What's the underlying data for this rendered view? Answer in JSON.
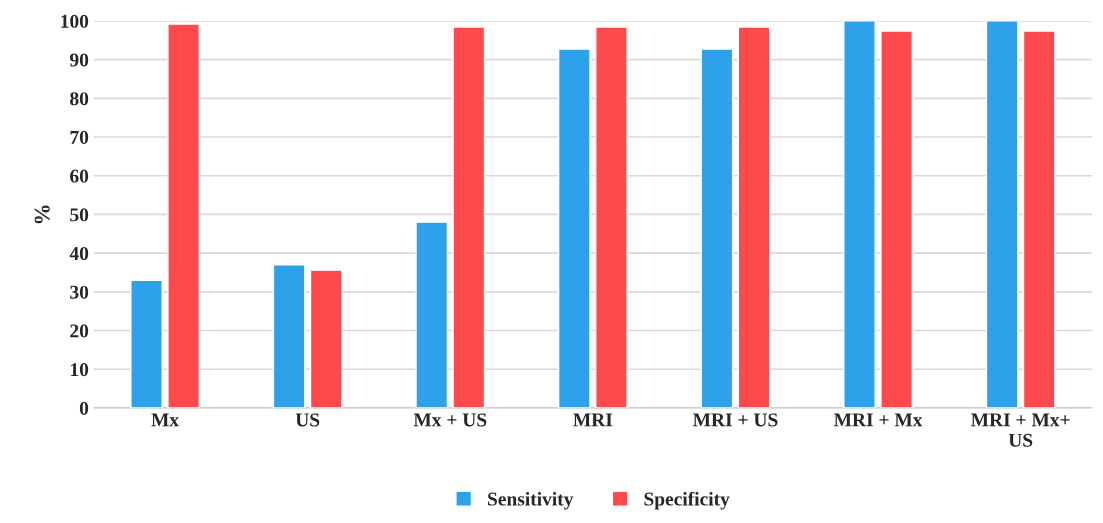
{
  "chart_data": {
    "type": "bar",
    "categories": [
      "Mx",
      "US",
      "Mx + US",
      "MRI",
      "MRI + US",
      "MRI + Mx",
      "MRI + Mx+\nUS"
    ],
    "series": [
      {
        "name": "Sensitivity",
        "color": "#2ea1eb",
        "values": [
          33,
          37,
          48,
          92.7,
          92.7,
          100,
          100
        ]
      },
      {
        "name": "Specificity",
        "color": "#ff4a4d",
        "values": [
          99.2,
          35.6,
          98.4,
          98.4,
          98.4,
          97.4,
          97.4
        ]
      }
    ],
    "ylabel": "%",
    "ylim": [
      0,
      100
    ],
    "yticks": [
      0,
      10,
      20,
      30,
      40,
      50,
      60,
      70,
      80,
      90,
      100
    ],
    "grid": "y",
    "legend": "bottom"
  }
}
